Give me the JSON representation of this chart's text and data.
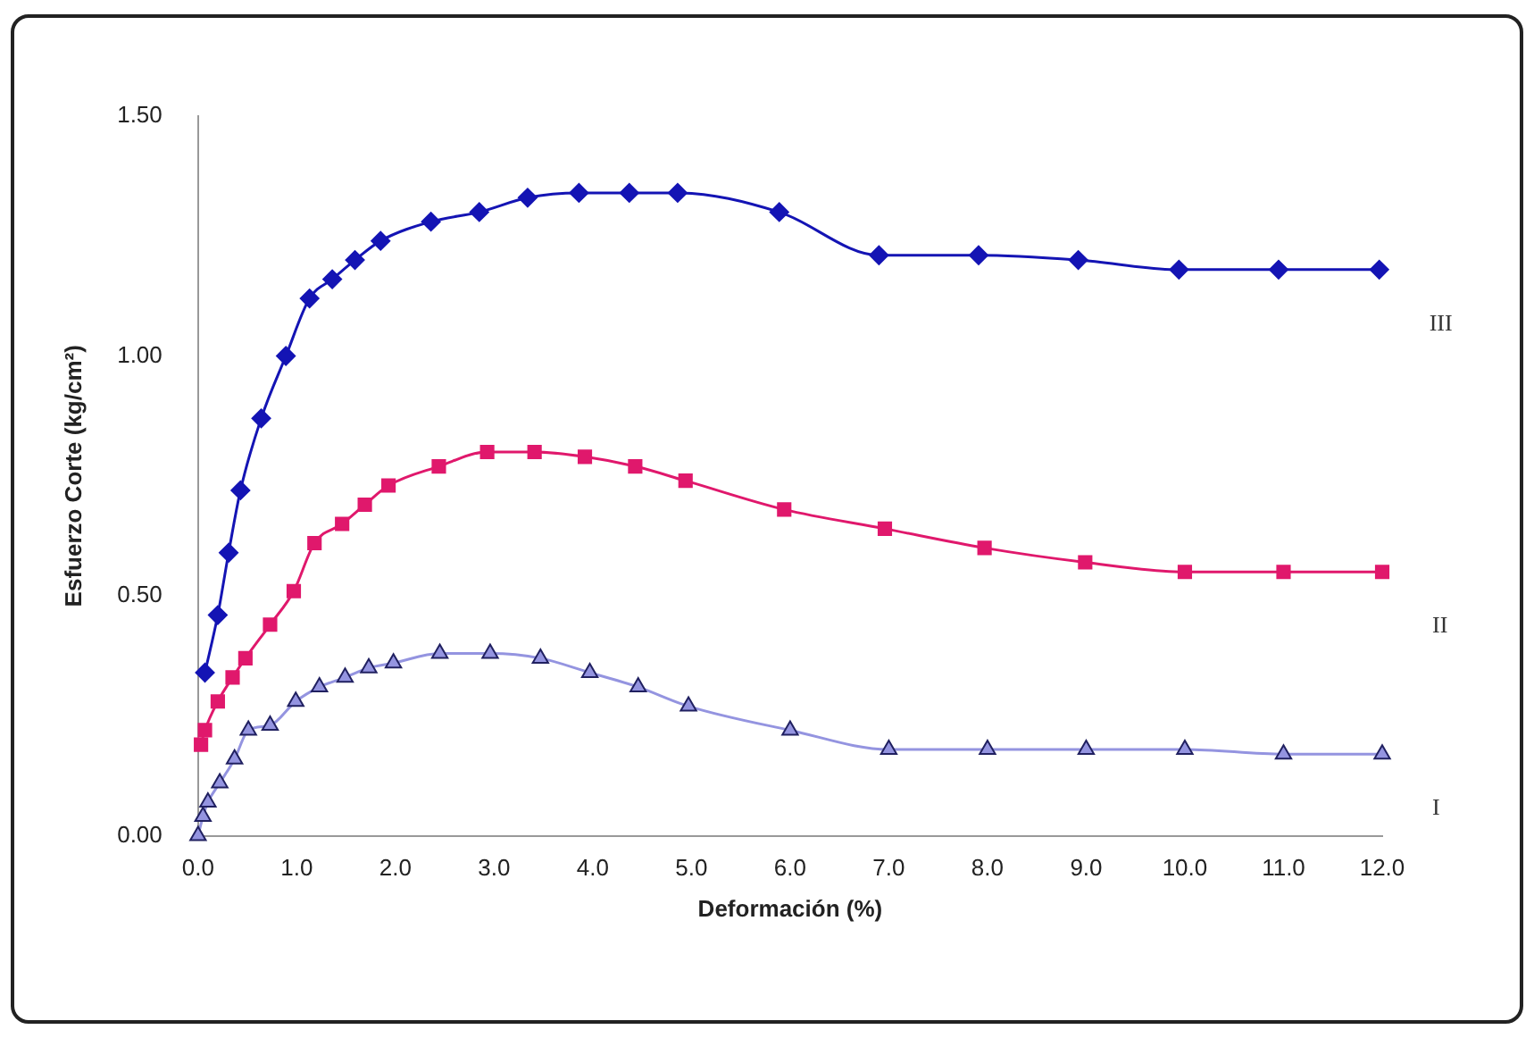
{
  "chart_data": {
    "type": "line",
    "xlabel": "Deformación (%)",
    "ylabel": "Esfuerzo Corte (kg/cm²)",
    "xlim": [
      0,
      12
    ],
    "ylim": [
      0,
      1.5
    ],
    "xticks": [
      {
        "value": 0,
        "label": "0.0"
      },
      {
        "value": 1,
        "label": "1.0"
      },
      {
        "value": 2,
        "label": "2.0"
      },
      {
        "value": 3,
        "label": "3.0"
      },
      {
        "value": 4,
        "label": "4.0"
      },
      {
        "value": 5,
        "label": "5.0"
      },
      {
        "value": 6,
        "label": "6.0"
      },
      {
        "value": 7,
        "label": "7.0"
      },
      {
        "value": 8,
        "label": "8.0"
      },
      {
        "value": 9,
        "label": "9.0"
      },
      {
        "value": 10,
        "label": "10.0"
      },
      {
        "value": 11,
        "label": "11.0"
      },
      {
        "value": 12,
        "label": "12.0"
      }
    ],
    "yticks": [
      {
        "value": 0,
        "label": "0.00"
      },
      {
        "value": 0.5,
        "label": "0.50"
      },
      {
        "value": 1,
        "label": "1.00"
      },
      {
        "value": 1.5,
        "label": "1.50"
      }
    ],
    "grid": false,
    "legend": false,
    "series": [
      {
        "name": "III",
        "color": "#1414b4",
        "marker": "diamond",
        "x": [
          0.07,
          0.2,
          0.31,
          0.43,
          0.64,
          0.89,
          1.13,
          1.36,
          1.59,
          1.85,
          2.36,
          2.85,
          3.34,
          3.86,
          4.37,
          4.86,
          5.89,
          6.9,
          7.91,
          8.92,
          9.94,
          10.95,
          11.97
        ],
        "values": [
          0.34,
          0.46,
          0.59,
          0.72,
          0.87,
          1.0,
          1.12,
          1.16,
          1.2,
          1.24,
          1.28,
          1.3,
          1.33,
          1.34,
          1.34,
          1.34,
          1.3,
          1.21,
          1.21,
          1.2,
          1.18,
          1.18,
          1.18
        ]
      },
      {
        "name": "II",
        "color": "#e0186c",
        "marker": "square",
        "x": [
          0.03,
          0.07,
          0.2,
          0.35,
          0.48,
          0.73,
          0.97,
          1.18,
          1.46,
          1.69,
          1.93,
          2.44,
          2.93,
          3.41,
          3.92,
          4.43,
          4.94,
          5.94,
          6.96,
          7.97,
          8.99,
          10,
          11,
          12
        ],
        "values": [
          0.19,
          0.22,
          0.28,
          0.33,
          0.37,
          0.44,
          0.51,
          0.61,
          0.65,
          0.69,
          0.73,
          0.77,
          0.8,
          0.8,
          0.79,
          0.77,
          0.74,
          0.68,
          0.64,
          0.6,
          0.57,
          0.55,
          0.55,
          0.55
        ]
      },
      {
        "name": "I",
        "color": "#9494e0",
        "marker": "triangle",
        "x": [
          0,
          0.05,
          0.1,
          0.22,
          0.37,
          0.51,
          0.73,
          0.99,
          1.23,
          1.49,
          1.73,
          1.98,
          2.45,
          2.96,
          3.47,
          3.97,
          4.46,
          4.97,
          6,
          7,
          8,
          9,
          10,
          11,
          12
        ],
        "values": [
          0,
          0.04,
          0.07,
          0.11,
          0.16,
          0.22,
          0.23,
          0.28,
          0.31,
          0.33,
          0.35,
          0.36,
          0.38,
          0.38,
          0.37,
          0.34,
          0.31,
          0.27,
          0.22,
          0.18,
          0.18,
          0.18,
          0.18,
          0.17,
          0.17
        ]
      }
    ]
  }
}
